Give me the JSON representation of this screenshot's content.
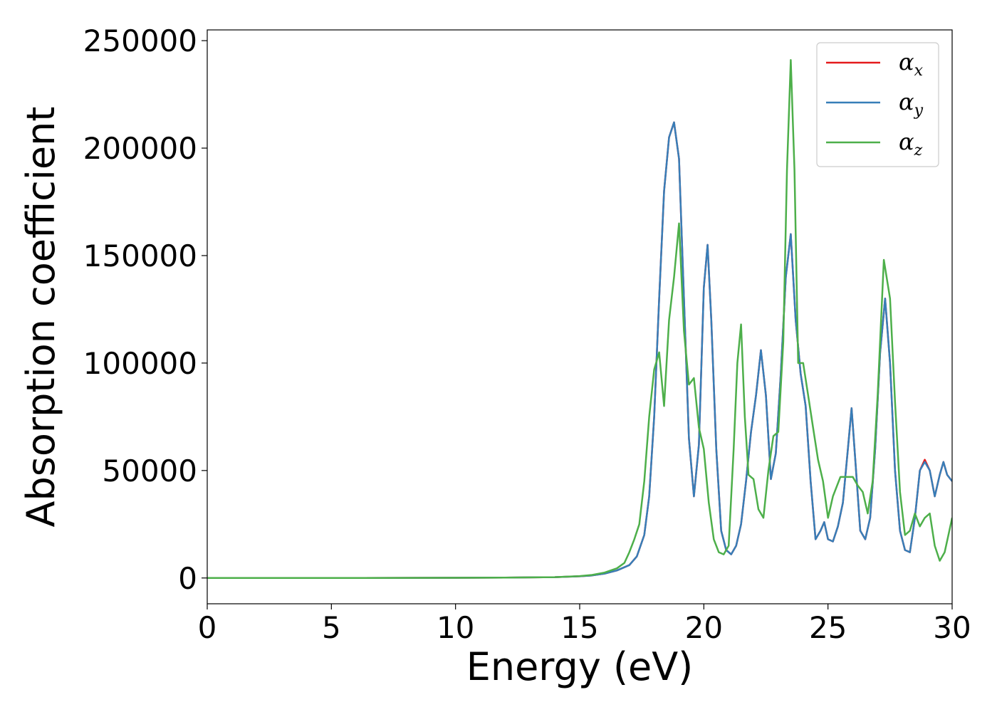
{
  "chart_data": {
    "type": "line",
    "title": "",
    "xlabel": "Energy (eV)",
    "ylabel": "Absorption coefficient",
    "xlim": [
      0,
      30
    ],
    "ylim": [
      -12000,
      255000
    ],
    "xticks": [
      0,
      5,
      10,
      15,
      20,
      25,
      30
    ],
    "xtick_labels": [
      "0",
      "5",
      "10",
      "15",
      "20",
      "25",
      "30"
    ],
    "yticks": [
      0,
      50000,
      100000,
      150000,
      200000,
      250000
    ],
    "ytick_labels": [
      "0",
      "50000",
      "100000",
      "150000",
      "200000",
      "250000"
    ],
    "grid": false,
    "legend_position": "top-right",
    "series": [
      {
        "name": "α_x",
        "legend_symbol": "α",
        "legend_sub": "x",
        "color": "#e41a1c",
        "x": [
          0,
          5,
          10,
          12,
          14,
          15,
          15.5,
          16,
          16.5,
          17,
          17.3,
          17.6,
          17.8,
          18.0,
          18.2,
          18.4,
          18.6,
          18.8,
          19.0,
          19.2,
          19.4,
          19.6,
          19.8,
          20.0,
          20.15,
          20.3,
          20.5,
          20.7,
          20.9,
          21.1,
          21.3,
          21.5,
          21.7,
          21.9,
          22.1,
          22.3,
          22.5,
          22.7,
          22.9,
          23.1,
          23.3,
          23.5,
          23.7,
          23.9,
          24.1,
          24.3,
          24.5,
          24.7,
          24.85,
          25.0,
          25.2,
          25.4,
          25.6,
          25.8,
          25.95,
          26.1,
          26.3,
          26.5,
          26.7,
          26.9,
          27.1,
          27.3,
          27.5,
          27.7,
          27.9,
          28.1,
          28.3,
          28.5,
          28.7,
          28.9,
          29.1,
          29.3,
          29.5,
          29.65,
          29.8,
          30.0
        ],
        "y": [
          0,
          0,
          100,
          200,
          400,
          800,
          1200,
          2000,
          3500,
          6000,
          10000,
          20000,
          38000,
          75000,
          130000,
          180000,
          205000,
          212000,
          195000,
          130000,
          65000,
          38000,
          62000,
          135000,
          155000,
          120000,
          60000,
          22000,
          13000,
          11000,
          15000,
          25000,
          45000,
          68000,
          85000,
          106000,
          85000,
          46000,
          58000,
          95000,
          140000,
          160000,
          120000,
          95000,
          80000,
          45000,
          18000,
          22000,
          26000,
          18000,
          17000,
          24000,
          35000,
          60000,
          79000,
          55000,
          22000,
          18000,
          28000,
          60000,
          105000,
          130000,
          100000,
          50000,
          22000,
          13000,
          12000,
          28000,
          50000,
          55000,
          50000,
          38000,
          48000,
          54000,
          48000,
          45000
        ]
      },
      {
        "name": "α_y",
        "legend_symbol": "α",
        "legend_sub": "y",
        "color": "#377eb8",
        "x": [
          0,
          5,
          10,
          12,
          14,
          15,
          15.5,
          16,
          16.5,
          17,
          17.3,
          17.6,
          17.8,
          18.0,
          18.2,
          18.4,
          18.6,
          18.8,
          19.0,
          19.2,
          19.4,
          19.6,
          19.8,
          20.0,
          20.15,
          20.3,
          20.5,
          20.7,
          20.9,
          21.1,
          21.3,
          21.5,
          21.7,
          21.9,
          22.1,
          22.3,
          22.5,
          22.7,
          22.9,
          23.1,
          23.3,
          23.5,
          23.7,
          23.9,
          24.1,
          24.3,
          24.5,
          24.7,
          24.85,
          25.0,
          25.2,
          25.4,
          25.6,
          25.8,
          25.95,
          26.1,
          26.3,
          26.5,
          26.7,
          26.9,
          27.1,
          27.3,
          27.5,
          27.7,
          27.9,
          28.1,
          28.3,
          28.5,
          28.7,
          28.9,
          29.1,
          29.3,
          29.5,
          29.65,
          29.8,
          30.0
        ],
        "y": [
          0,
          0,
          100,
          200,
          400,
          800,
          1200,
          2000,
          3500,
          6000,
          10000,
          20000,
          38000,
          75000,
          130000,
          180000,
          205000,
          212000,
          195000,
          130000,
          65000,
          38000,
          62000,
          135000,
          155000,
          120000,
          60000,
          22000,
          13000,
          11000,
          15000,
          25000,
          45000,
          68000,
          85000,
          106000,
          85000,
          46000,
          58000,
          95000,
          140000,
          160000,
          120000,
          95000,
          80000,
          45000,
          18000,
          22000,
          26000,
          18000,
          17000,
          24000,
          35000,
          60000,
          79000,
          55000,
          22000,
          18000,
          28000,
          60000,
          105000,
          130000,
          100000,
          50000,
          22000,
          13000,
          12000,
          28000,
          50000,
          54000,
          50000,
          38000,
          48000,
          54000,
          48000,
          45000
        ]
      },
      {
        "name": "α_z",
        "legend_symbol": "α",
        "legend_sub": "z",
        "color": "#4daf4a",
        "x": [
          0,
          5,
          10,
          12,
          14,
          15,
          15.5,
          16,
          16.5,
          16.8,
          17.0,
          17.2,
          17.4,
          17.6,
          17.8,
          18.0,
          18.2,
          18.4,
          18.6,
          18.8,
          19.0,
          19.2,
          19.4,
          19.6,
          19.8,
          20.0,
          20.2,
          20.4,
          20.6,
          20.8,
          21.0,
          21.2,
          21.35,
          21.5,
          21.65,
          21.8,
          22.0,
          22.2,
          22.4,
          22.6,
          22.8,
          23.0,
          23.2,
          23.35,
          23.5,
          23.65,
          23.8,
          24.0,
          24.2,
          24.4,
          24.6,
          24.8,
          25.0,
          25.2,
          25.5,
          25.8,
          26.0,
          26.2,
          26.4,
          26.6,
          26.8,
          27.0,
          27.25,
          27.5,
          27.7,
          27.9,
          28.1,
          28.3,
          28.5,
          28.7,
          28.9,
          29.1,
          29.3,
          29.5,
          29.7,
          29.85,
          30.0
        ],
        "y": [
          0,
          0,
          100,
          200,
          400,
          900,
          1400,
          2500,
          4500,
          7000,
          12000,
          18000,
          25000,
          45000,
          75000,
          97000,
          105000,
          80000,
          120000,
          140000,
          165000,
          115000,
          90000,
          93000,
          70000,
          60000,
          35000,
          18000,
          12000,
          11000,
          15000,
          60000,
          100000,
          118000,
          75000,
          48000,
          46000,
          32000,
          28000,
          50000,
          66000,
          68000,
          110000,
          190000,
          241000,
          190000,
          100000,
          100000,
          85000,
          70000,
          55000,
          45000,
          28000,
          38000,
          47000,
          47000,
          47000,
          43000,
          40000,
          30000,
          45000,
          85000,
          148000,
          130000,
          82000,
          40000,
          20000,
          22000,
          30000,
          24000,
          28000,
          30000,
          15000,
          8000,
          12000,
          20000,
          28000
        ]
      }
    ]
  }
}
